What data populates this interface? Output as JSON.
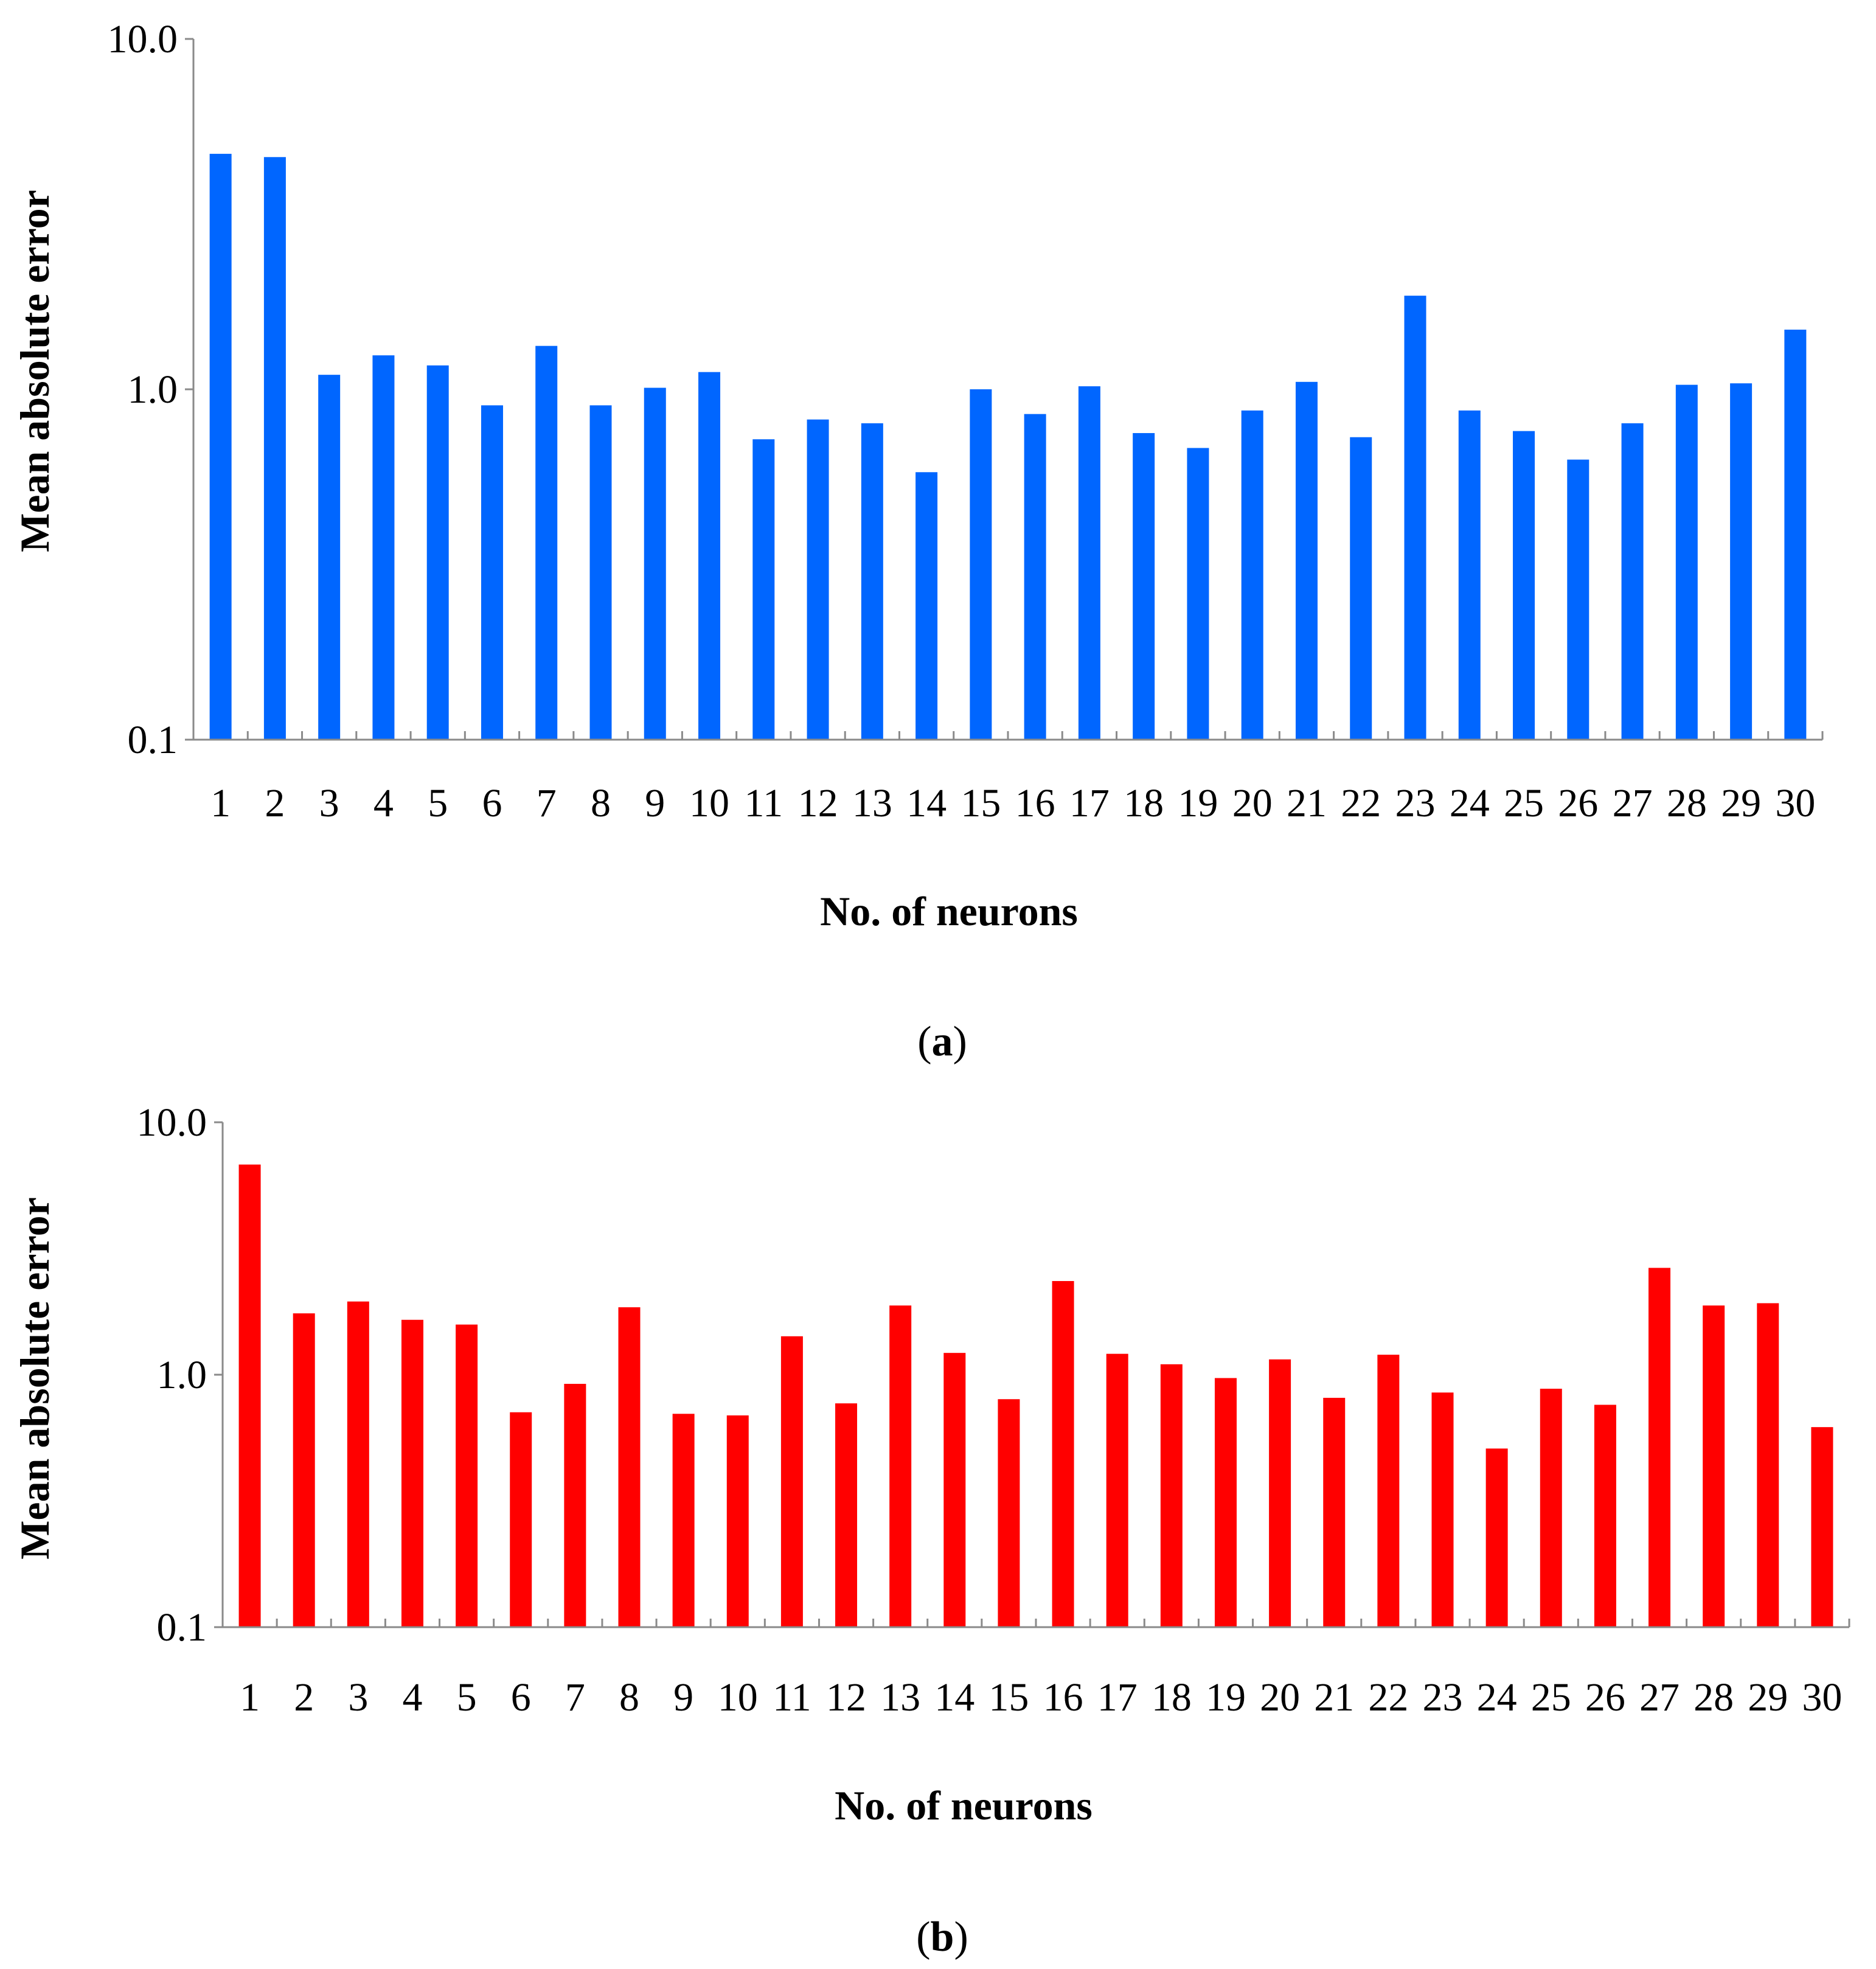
{
  "chart_data": [
    {
      "type": "bar",
      "scale": "log",
      "title": "",
      "xlabel": "No. of neurons",
      "ylabel": "Mean absolute error",
      "caption": "a",
      "ylim": [
        0.1,
        10
      ],
      "yticks": [
        "0.1",
        "1.0",
        "10.0"
      ],
      "yticks_values": [
        0.1,
        1,
        10
      ],
      "categories": [
        "1",
        "2",
        "3",
        "4",
        "5",
        "6",
        "7",
        "8",
        "9",
        "10",
        "11",
        "12",
        "13",
        "14",
        "15",
        "16",
        "17",
        "18",
        "19",
        "20",
        "21",
        "22",
        "23",
        "24",
        "25",
        "26",
        "27",
        "28",
        "29",
        "30"
      ],
      "values": [
        4.7,
        4.6,
        1.1,
        1.25,
        1.17,
        0.9,
        1.33,
        0.9,
        1.01,
        1.12,
        0.72,
        0.82,
        0.8,
        0.58,
        1.0,
        0.85,
        1.02,
        0.75,
        0.68,
        0.87,
        1.05,
        0.73,
        1.85,
        0.87,
        0.76,
        0.63,
        0.8,
        1.03,
        1.04,
        1.48
      ],
      "color": "#0066FF",
      "grid": false
    },
    {
      "type": "bar",
      "scale": "log",
      "title": "",
      "xlabel": "No. of neurons",
      "ylabel": "Mean absolute error",
      "caption": "b",
      "ylim": [
        0.1,
        10
      ],
      "yticks": [
        "0.1",
        "1.0",
        "10.0"
      ],
      "yticks_values": [
        0.1,
        1,
        10
      ],
      "categories": [
        "1",
        "2",
        "3",
        "4",
        "5",
        "6",
        "7",
        "8",
        "9",
        "10",
        "11",
        "12",
        "13",
        "14",
        "15",
        "16",
        "17",
        "18",
        "19",
        "20",
        "21",
        "22",
        "23",
        "24",
        "25",
        "26",
        "27",
        "28",
        "29",
        "30"
      ],
      "values": [
        6.8,
        1.75,
        1.95,
        1.65,
        1.58,
        0.71,
        0.92,
        1.85,
        0.7,
        0.69,
        1.42,
        0.77,
        1.88,
        1.22,
        0.8,
        2.35,
        1.21,
        1.1,
        0.97,
        1.15,
        0.81,
        1.2,
        0.85,
        0.51,
        0.88,
        0.76,
        2.65,
        1.88,
        1.92,
        0.62
      ],
      "color": "#FF0000",
      "grid": false
    }
  ]
}
